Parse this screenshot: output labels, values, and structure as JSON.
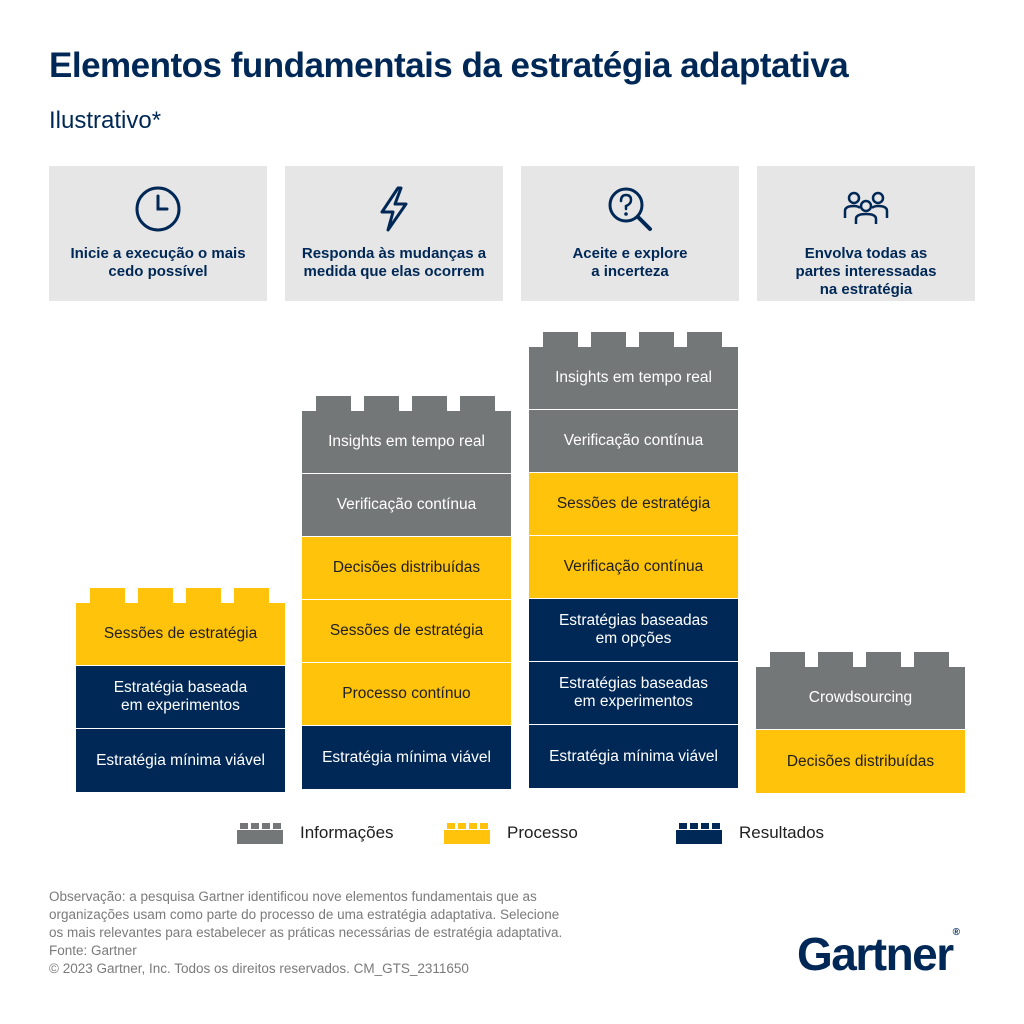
{
  "title": "Elementos fundamentais da estratégia adaptativa",
  "subtitle": "Ilustrativo*",
  "cards": [
    {
      "icon": "clock-icon",
      "label": "Inicie a execução o mais\ncedo possível"
    },
    {
      "icon": "lightning-icon",
      "label": "Responda às mudanças a\nmedida que elas ocorrem"
    },
    {
      "icon": "question-search-icon",
      "label": "Aceite e explore\na incerteza"
    },
    {
      "icon": "people-group-icon",
      "label": "Envolva todas as\npartes interessadas\nna estratégia"
    }
  ],
  "stacks": [
    {
      "studs": "process",
      "bricks": [
        {
          "type": "process",
          "label": "Sessões de estratégia"
        },
        {
          "type": "result",
          "label": "Estratégia baseada\nem experimentos"
        },
        {
          "type": "result",
          "label": "Estratégia mínima viável"
        }
      ]
    },
    {
      "studs": "info",
      "bricks": [
        {
          "type": "info",
          "label": "Insights em tempo real"
        },
        {
          "type": "info",
          "label": "Verificação contínua"
        },
        {
          "type": "process",
          "label": "Decisões distribuídas"
        },
        {
          "type": "process",
          "label": "Sessões de estratégia"
        },
        {
          "type": "process",
          "label": "Processo contínuo"
        },
        {
          "type": "result",
          "label": "Estratégia mínima viável"
        }
      ]
    },
    {
      "studs": "info",
      "bricks": [
        {
          "type": "info",
          "label": "Insights em tempo real"
        },
        {
          "type": "info",
          "label": "Verificação contínua"
        },
        {
          "type": "process",
          "label": "Sessões de estratégia"
        },
        {
          "type": "process",
          "label": "Verificação contínua"
        },
        {
          "type": "result",
          "label": "Estratégias baseadas\nem opções"
        },
        {
          "type": "result",
          "label": "Estratégias baseadas\nem experimentos"
        },
        {
          "type": "result",
          "label": "Estratégia mínima viável"
        }
      ]
    },
    {
      "studs": "info",
      "bricks": [
        {
          "type": "info",
          "label": "Crowdsourcing"
        },
        {
          "type": "process",
          "label": "Decisões distribuídas"
        }
      ]
    }
  ],
  "legend": [
    {
      "type": "info",
      "label": "Informações"
    },
    {
      "type": "process",
      "label": "Processo"
    },
    {
      "type": "result",
      "label": "Resultados"
    }
  ],
  "colors": {
    "info": "#747778",
    "process": "#ffc30b",
    "result": "#002856"
  },
  "note_lines": [
    "Observação: a pesquisa Gartner identificou nove elementos fundamentais que as",
    "organizações usam como parte do processo de uma estratégia adaptativa. Selecione",
    "os mais relevantes para estabelecer as práticas necessárias de estratégia adaptativa.",
    "Fonte: Gartner",
    "© 2023 Gartner, Inc. Todos os direitos reservados. CM_GTS_2311650"
  ],
  "logo": "Gartner",
  "logo_mark": "®"
}
